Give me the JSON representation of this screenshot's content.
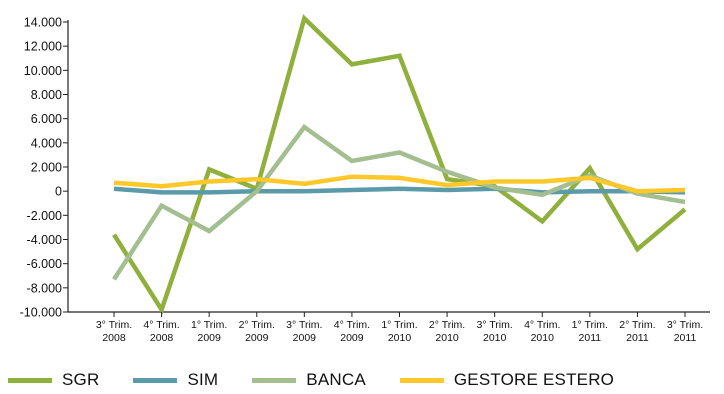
{
  "chart_data": {
    "type": "line",
    "title": "",
    "xlabel": "",
    "ylabel": "",
    "categories": [
      [
        "3° Trim.",
        "2008"
      ],
      [
        "4° Trim.",
        "2008"
      ],
      [
        "1° Trim.",
        "2009"
      ],
      [
        "2° Trim.",
        "2009"
      ],
      [
        "3° Trim.",
        "2009"
      ],
      [
        "4° Trim.",
        "2009"
      ],
      [
        "1° Trim.",
        "2010"
      ],
      [
        "2° Trim.",
        "2010"
      ],
      [
        "3° Trim.",
        "2010"
      ],
      [
        "4° Trim.",
        "2010"
      ],
      [
        "1° Trim.",
        "2011"
      ],
      [
        "2° Trim.",
        "2011"
      ],
      [
        "3° Trim.",
        "2011"
      ]
    ],
    "ylim": [
      -10000,
      14000
    ],
    "yticks": [
      14000,
      12000,
      10000,
      8000,
      6000,
      4000,
      2000,
      0,
      -2000,
      -4000,
      -6000,
      -8000,
      -10000
    ],
    "ytick_labels": [
      "14.000",
      "12.000",
      "10.000",
      "8.000",
      "6.000",
      "4.000",
      "2.000",
      "0",
      "-2.000",
      "-4.000",
      "-6.000",
      "-8.000",
      "-10.000"
    ],
    "grid": false,
    "legend_position": "bottom",
    "series": [
      {
        "name": "SGR",
        "color": "#8fb03c",
        "values": [
          -3600,
          -9800,
          1800,
          200,
          14300,
          10500,
          11200,
          1000,
          400,
          -2500,
          1900,
          -4800,
          -1500
        ]
      },
      {
        "name": "SIM",
        "color": "#5b9aa9",
        "values": [
          200,
          -100,
          -100,
          0,
          0,
          100,
          200,
          100,
          200,
          -100,
          0,
          0,
          -100
        ]
      },
      {
        "name": "BANCA",
        "color": "#a3bf8f",
        "values": [
          -7300,
          -1200,
          -3300,
          0,
          5300,
          2500,
          3200,
          1600,
          300,
          -300,
          1300,
          -200,
          -900
        ]
      },
      {
        "name": "GESTORE ESTERO",
        "color": "#ffc82a",
        "values": [
          700,
          400,
          800,
          1000,
          600,
          1200,
          1100,
          500,
          800,
          800,
          1100,
          0,
          100
        ]
      }
    ]
  }
}
